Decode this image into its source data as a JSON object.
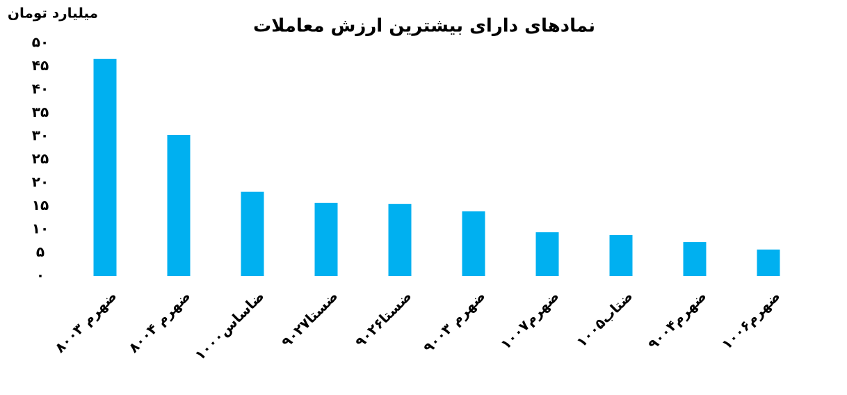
{
  "chart_data": {
    "type": "bar",
    "title": "نمادهای دارای بیشترین ارزش معاملات",
    "y_label": "میلیارد تومان",
    "categories": [
      "ضهرم ۸۰۰۳",
      "ضهرم ۸۰۰۴",
      "ضاساس۱۰۰۰",
      "ضستا۹۰۲۷",
      "ضستا۹۰۲۶",
      "ضهرم ۹۰۰۳",
      "ضهرم۱۰۰۷",
      "ضتاب۱۰۰۵",
      "ضهرم۹۰۰۴",
      "ضهرم۱۰۰۶"
    ],
    "values": [
      46.6,
      30.3,
      18.1,
      15.7,
      15.5,
      13.9,
      9.4,
      8.8,
      7.3,
      5.7
    ],
    "color": "#00b0f0",
    "ylim": [
      0,
      50
    ],
    "yticks": [
      {
        "value": 0,
        "label": "۰"
      },
      {
        "value": 5,
        "label": "۵"
      },
      {
        "value": 10,
        "label": "۱۰"
      },
      {
        "value": 15,
        "label": "۱۵"
      },
      {
        "value": 20,
        "label": "۲۰"
      },
      {
        "value": 25,
        "label": "۲۵"
      },
      {
        "value": 30,
        "label": "۳۰"
      },
      {
        "value": 35,
        "label": "۳۵"
      },
      {
        "value": 40,
        "label": "۴۰"
      },
      {
        "value": 45,
        "label": "۴۵"
      },
      {
        "value": 50,
        "label": "۵۰"
      }
    ],
    "grid": false
  }
}
